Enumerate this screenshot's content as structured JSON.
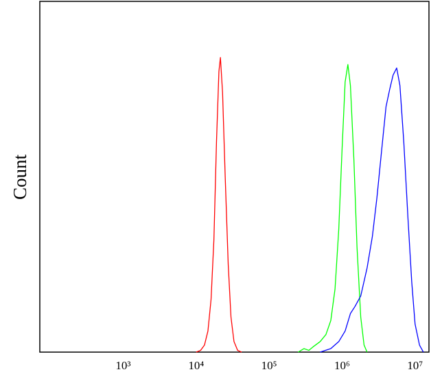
{
  "chart_data": {
    "type": "line",
    "y_label": "Count",
    "xscale": "log",
    "xlim": [
      72,
      15500000
    ],
    "ylim": [
      0,
      100
    ],
    "xticks": [
      {
        "value": 1000,
        "label": "10³"
      },
      {
        "value": 10000,
        "label": "10⁴"
      },
      {
        "value": 100000,
        "label": "10⁵"
      },
      {
        "value": 1000000,
        "label": "10⁶"
      },
      {
        "value": 10000000,
        "label": "10⁷"
      }
    ],
    "series": [
      {
        "color": "#ff0000",
        "x": [
          10000,
          11500,
          13000,
          14500,
          16000,
          17500,
          19000,
          20500,
          21500,
          23000,
          25000,
          27500,
          30000,
          33000,
          37000,
          42000
        ],
        "values": [
          0,
          0.5,
          2,
          6,
          15,
          32,
          60,
          80,
          84,
          74,
          50,
          25,
          10,
          3,
          0.5,
          0
        ]
      },
      {
        "color": "#00ff00",
        "x": [
          250000,
          300000,
          350000,
          400000,
          500000,
          600000,
          700000,
          800000,
          900000,
          1000000,
          1100000,
          1200000,
          1300000,
          1450000,
          1600000,
          1800000,
          2000000,
          2200000
        ],
        "values": [
          0,
          1,
          0.5,
          1.5,
          3,
          5,
          9,
          18,
          35,
          58,
          77,
          82,
          76,
          55,
          30,
          10,
          2,
          0
        ]
      },
      {
        "color": "#0000ff",
        "x": [
          500000,
          700000,
          900000,
          1100000,
          1300000,
          1500000,
          1800000,
          2200000,
          2600000,
          3000000,
          3500000,
          4000000,
          4500000,
          5000000,
          5600000,
          6200000,
          7000000,
          8000000,
          9000000,
          10000000,
          11500000,
          13000000
        ],
        "values": [
          0,
          1,
          3,
          6,
          11,
          13,
          16,
          24,
          33,
          44,
          58,
          70,
          75,
          79,
          81,
          76,
          60,
          38,
          20,
          8,
          2,
          0
        ]
      }
    ]
  }
}
